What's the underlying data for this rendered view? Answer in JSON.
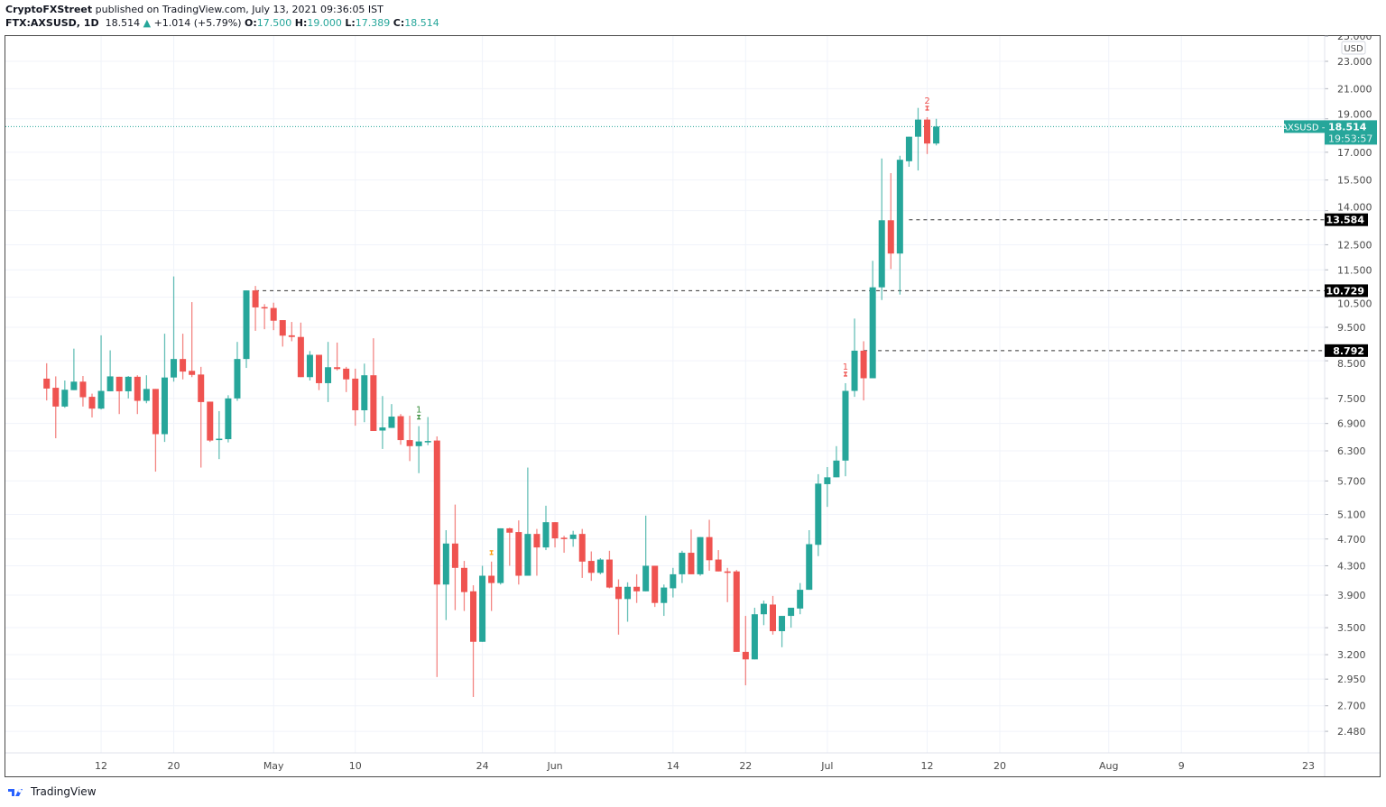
{
  "header": {
    "publisher": "CryptoFXStreet",
    "published_text": "published on TradingView.com, July 13, 2021 09:36:05 IST",
    "symbol": "FTX:AXSUSD, 1D",
    "last": "18.514",
    "change": "+1.014 (+5.79%)",
    "change_icon": "triangle-up-icon",
    "o_label": "O:",
    "o": "17.500",
    "h_label": "H:",
    "h": "19.000",
    "l_label": "L:",
    "l": "17.389",
    "c_label": "C:",
    "c": "18.514"
  },
  "footer": {
    "brand": "TradingView"
  },
  "colors": {
    "up": "#26a69a",
    "down": "#ef5350",
    "grid": "#f0f3fa",
    "level": "#000000"
  },
  "chart_data": {
    "type": "candlestick",
    "title": "",
    "y_scale": "log",
    "currency_label": "USD",
    "ylim": [
      2.35,
      25.2
    ],
    "xlim": [
      "2021-04-01",
      "2021-08-24"
    ],
    "grid": true,
    "y_ticks": [
      "25.000",
      "23.000",
      "21.000",
      "19.000",
      "17.000",
      "15.500",
      "14.000",
      "12.500",
      "11.500",
      "10.500",
      "9.500",
      "8.500",
      "7.500",
      "6.900",
      "6.300",
      "5.700",
      "5.100",
      "4.700",
      "4.300",
      "3.900",
      "3.500",
      "3.200",
      "2.950",
      "2.700",
      "2.480"
    ],
    "x_ticks": [
      {
        "date": "2021-04-12",
        "label": "12"
      },
      {
        "date": "2021-04-20",
        "label": "20"
      },
      {
        "date": "2021-05-01",
        "label": "May"
      },
      {
        "date": "2021-05-10",
        "label": "10"
      },
      {
        "date": "2021-05-24",
        "label": "24"
      },
      {
        "date": "2021-06-01",
        "label": "Jun"
      },
      {
        "date": "2021-06-14",
        "label": "14"
      },
      {
        "date": "2021-06-22",
        "label": "22"
      },
      {
        "date": "2021-07-01",
        "label": "Jul"
      },
      {
        "date": "2021-07-12",
        "label": "12"
      },
      {
        "date": "2021-07-20",
        "label": "20"
      },
      {
        "date": "2021-08-01",
        "label": "Aug"
      },
      {
        "date": "2021-08-09",
        "label": "9"
      },
      {
        "date": "2021-08-23",
        "label": "23"
      }
    ],
    "current_price": {
      "symbol": "AXSUSD",
      "value": "18.514",
      "countdown": "19:53:57"
    },
    "levels": [
      {
        "value": 13.584,
        "label": "13.584",
        "from": "2021-07-10"
      },
      {
        "value": 10.729,
        "label": "10.729",
        "from": "2021-04-29"
      },
      {
        "value": 8.792,
        "label": "8.792",
        "from": "2021-07-05"
      }
    ],
    "markers": [
      {
        "date": "2021-05-17",
        "label": "1",
        "color": "#388e3c",
        "position": "above"
      },
      {
        "date": "2021-05-25",
        "label": "",
        "color": "#ff9800",
        "position": "above"
      },
      {
        "date": "2021-07-03",
        "label": "1",
        "color": "#ef5350",
        "position": "above"
      },
      {
        "date": "2021-07-12",
        "label": "2",
        "color": "#ef5350",
        "position": "above"
      }
    ],
    "columns": [
      "date",
      "open",
      "high",
      "low",
      "close"
    ],
    "candles": [
      [
        "2021-04-06",
        8.01,
        8.43,
        7.45,
        7.75
      ],
      [
        "2021-04-07",
        7.77,
        8.07,
        6.57,
        7.3
      ],
      [
        "2021-04-08",
        7.3,
        7.96,
        7.27,
        7.72
      ],
      [
        "2021-04-09",
        7.71,
        8.85,
        7.71,
        7.93
      ],
      [
        "2021-04-10",
        7.93,
        8.08,
        7.3,
        7.53
      ],
      [
        "2021-04-11",
        7.54,
        7.62,
        7.04,
        7.25
      ],
      [
        "2021-04-12",
        7.25,
        9.25,
        7.23,
        7.69
      ],
      [
        "2021-04-13",
        7.68,
        8.8,
        7.68,
        8.07
      ],
      [
        "2021-04-14",
        8.06,
        8.06,
        7.12,
        7.68
      ],
      [
        "2021-04-15",
        7.68,
        8.08,
        7.5,
        8.06
      ],
      [
        "2021-04-16",
        8.06,
        8.1,
        7.12,
        7.44
      ],
      [
        "2021-04-17",
        7.44,
        8.1,
        7.38,
        7.74
      ],
      [
        "2021-04-18",
        7.74,
        7.74,
        5.88,
        6.66
      ],
      [
        "2021-04-19",
        6.66,
        9.3,
        6.49,
        8.04
      ],
      [
        "2021-04-20",
        8.04,
        11.25,
        7.93,
        8.55
      ],
      [
        "2021-04-21",
        8.55,
        9.3,
        7.99,
        8.2
      ],
      [
        "2021-04-22",
        8.22,
        10.33,
        8.05,
        8.11
      ],
      [
        "2021-04-23",
        8.12,
        8.33,
        5.96,
        7.41
      ],
      [
        "2021-04-24",
        7.42,
        7.42,
        6.49,
        6.52
      ],
      [
        "2021-04-25",
        6.53,
        7.19,
        6.13,
        6.56
      ],
      [
        "2021-04-26",
        6.55,
        7.58,
        6.48,
        7.5
      ],
      [
        "2021-04-27",
        7.5,
        9.05,
        7.44,
        8.55
      ],
      [
        "2021-04-28",
        8.55,
        10.74,
        8.3,
        10.74
      ],
      [
        "2021-04-29",
        10.74,
        10.9,
        9.39,
        10.15
      ],
      [
        "2021-04-30",
        10.16,
        10.26,
        9.44,
        10.12
      ],
      [
        "2021-05-01",
        10.13,
        10.31,
        9.41,
        9.71
      ],
      [
        "2021-05-02",
        9.73,
        9.73,
        8.91,
        9.24
      ],
      [
        "2021-05-03",
        9.25,
        9.67,
        9.07,
        9.2
      ],
      [
        "2021-05-04",
        9.2,
        9.65,
        8.05,
        8.05
      ],
      [
        "2021-05-05",
        8.05,
        8.78,
        7.96,
        8.67
      ],
      [
        "2021-05-06",
        8.67,
        8.67,
        7.71,
        7.89
      ],
      [
        "2021-05-07",
        7.89,
        9.05,
        7.41,
        8.32
      ],
      [
        "2021-05-08",
        8.32,
        9.03,
        8.23,
        8.27
      ],
      [
        "2021-05-09",
        8.28,
        8.33,
        7.66,
        7.99
      ],
      [
        "2021-05-10",
        8.01,
        8.28,
        6.85,
        7.21
      ],
      [
        "2021-05-11",
        7.21,
        8.42,
        6.93,
        8.1
      ],
      [
        "2021-05-12",
        8.1,
        9.16,
        6.73,
        6.73
      ],
      [
        "2021-05-13",
        6.74,
        7.56,
        6.34,
        6.81
      ],
      [
        "2021-05-14",
        6.8,
        7.36,
        6.8,
        7.06
      ],
      [
        "2021-05-15",
        7.07,
        7.12,
        6.43,
        6.53
      ],
      [
        "2021-05-16",
        6.53,
        7.08,
        6.09,
        6.4
      ],
      [
        "2021-05-17",
        6.4,
        6.84,
        5.85,
        6.5
      ],
      [
        "2021-05-18",
        6.49,
        7.05,
        6.42,
        6.51
      ],
      [
        "2021-05-19",
        6.52,
        6.61,
        2.97,
        4.04
      ],
      [
        "2021-05-20",
        4.04,
        4.84,
        3.59,
        4.63
      ],
      [
        "2021-05-21",
        4.63,
        5.27,
        3.71,
        4.27
      ],
      [
        "2021-05-22",
        4.27,
        4.37,
        3.7,
        3.94
      ],
      [
        "2021-05-23",
        3.95,
        4.03,
        2.78,
        3.34
      ],
      [
        "2021-05-24",
        3.34,
        4.3,
        3.34,
        4.16
      ],
      [
        "2021-05-25",
        4.16,
        4.36,
        3.7,
        4.06
      ],
      [
        "2021-05-26",
        4.06,
        4.87,
        4.04,
        4.87
      ],
      [
        "2021-05-27",
        4.87,
        4.88,
        4.3,
        4.8
      ],
      [
        "2021-05-28",
        4.81,
        5.0,
        4.04,
        4.16
      ],
      [
        "2021-05-29",
        4.16,
        5.96,
        4.16,
        4.78
      ],
      [
        "2021-05-30",
        4.78,
        4.86,
        4.16,
        4.57
      ],
      [
        "2021-05-31",
        4.57,
        5.25,
        4.53,
        4.97
      ],
      [
        "2021-06-01",
        4.97,
        4.97,
        4.57,
        4.71
      ],
      [
        "2021-06-02",
        4.72,
        4.75,
        4.49,
        4.7
      ],
      [
        "2021-06-03",
        4.7,
        4.83,
        4.58,
        4.77
      ],
      [
        "2021-06-04",
        4.78,
        4.86,
        4.13,
        4.36
      ],
      [
        "2021-06-05",
        4.37,
        4.51,
        4.09,
        4.2
      ],
      [
        "2021-06-06",
        4.2,
        4.41,
        4.18,
        4.39
      ],
      [
        "2021-06-07",
        4.39,
        4.52,
        3.99,
        4.0
      ],
      [
        "2021-06-08",
        4.01,
        4.11,
        3.42,
        3.85
      ],
      [
        "2021-06-09",
        3.85,
        4.07,
        3.57,
        4.01
      ],
      [
        "2021-06-10",
        4.01,
        4.18,
        3.8,
        3.95
      ],
      [
        "2021-06-11",
        3.95,
        5.08,
        3.95,
        4.3
      ],
      [
        "2021-06-12",
        4.3,
        4.3,
        3.75,
        3.8
      ],
      [
        "2021-06-13",
        3.8,
        4.04,
        3.64,
        4.0
      ],
      [
        "2021-06-14",
        3.99,
        4.27,
        3.87,
        4.18
      ],
      [
        "2021-06-15",
        4.18,
        4.52,
        4.06,
        4.49
      ],
      [
        "2021-06-16",
        4.49,
        4.85,
        4.18,
        4.18
      ],
      [
        "2021-06-17",
        4.18,
        4.73,
        4.16,
        4.73
      ],
      [
        "2021-06-18",
        4.73,
        5.01,
        4.23,
        4.38
      ],
      [
        "2021-06-19",
        4.39,
        4.53,
        4.22,
        4.22
      ],
      [
        "2021-06-20",
        4.22,
        4.27,
        3.81,
        4.2
      ],
      [
        "2021-06-21",
        4.22,
        4.24,
        3.23,
        3.23
      ],
      [
        "2021-06-22",
        3.23,
        3.64,
        2.89,
        3.15
      ],
      [
        "2021-06-23",
        3.15,
        3.74,
        3.15,
        3.66
      ],
      [
        "2021-06-24",
        3.66,
        3.83,
        3.53,
        3.79
      ],
      [
        "2021-06-25",
        3.78,
        3.89,
        3.42,
        3.46
      ],
      [
        "2021-06-26",
        3.46,
        3.64,
        3.28,
        3.64
      ],
      [
        "2021-06-27",
        3.64,
        3.74,
        3.5,
        3.74
      ],
      [
        "2021-06-28",
        3.73,
        4.06,
        3.66,
        3.97
      ],
      [
        "2021-06-29",
        3.97,
        4.84,
        3.97,
        4.62
      ],
      [
        "2021-06-30",
        4.61,
        5.83,
        4.44,
        5.65
      ],
      [
        "2021-07-01",
        5.64,
        5.97,
        5.23,
        5.77
      ],
      [
        "2021-07-02",
        5.77,
        6.4,
        5.77,
        6.1
      ],
      [
        "2021-07-03",
        6.1,
        7.89,
        5.79,
        7.69
      ],
      [
        "2021-07-04",
        7.69,
        9.78,
        7.54,
        8.79
      ],
      [
        "2021-07-05",
        8.79,
        9.07,
        7.45,
        8.02
      ],
      [
        "2021-07-06",
        8.02,
        11.85,
        8.02,
        10.85
      ],
      [
        "2021-07-07",
        10.85,
        16.65,
        10.4,
        13.56
      ],
      [
        "2021-07-08",
        13.56,
        15.86,
        11.53,
        12.14
      ],
      [
        "2021-07-09",
        12.14,
        16.8,
        10.59,
        16.58
      ],
      [
        "2021-07-10",
        16.5,
        17.9,
        16.2,
        17.9
      ],
      [
        "2021-07-11",
        17.9,
        19.7,
        16.0,
        18.95
      ],
      [
        "2021-07-12",
        18.95,
        19.1,
        16.9,
        17.5
      ],
      [
        "2021-07-13",
        17.5,
        19.0,
        17.389,
        18.514
      ]
    ]
  }
}
